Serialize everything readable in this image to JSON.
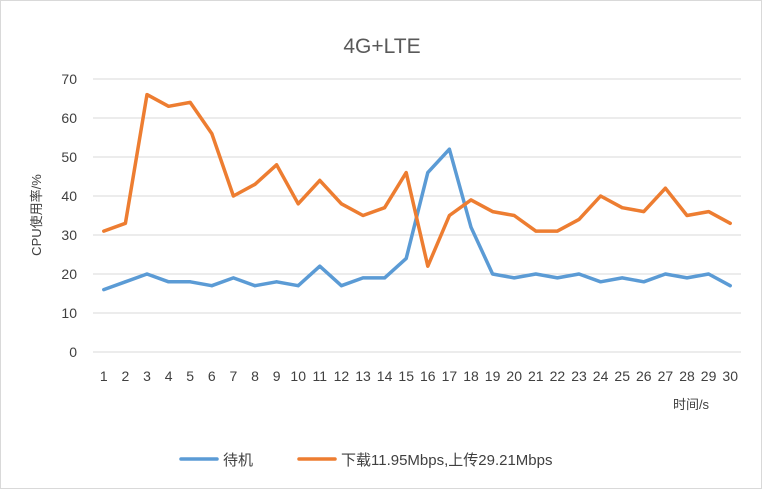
{
  "chart_data": {
    "type": "line",
    "title": "4G+LTE",
    "xlabel": "时间/s",
    "ylabel": "CPU使用率/%",
    "ylim": [
      0,
      70
    ],
    "yticks": [
      0,
      10,
      20,
      30,
      40,
      50,
      60,
      70
    ],
    "categories": [
      "1",
      "2",
      "3",
      "4",
      "5",
      "6",
      "7",
      "8",
      "9",
      "10",
      "11",
      "12",
      "13",
      "14",
      "15",
      "16",
      "17",
      "18",
      "19",
      "20",
      "21",
      "22",
      "23",
      "24",
      "25",
      "26",
      "27",
      "28",
      "29",
      "30"
    ],
    "grid": true,
    "legend_position": "bottom",
    "series": [
      {
        "name": "待机",
        "color": "#5b9bd5",
        "values": [
          16,
          18,
          20,
          18,
          18,
          17,
          19,
          17,
          18,
          17,
          22,
          17,
          19,
          19,
          24,
          46,
          52,
          32,
          20,
          19,
          20,
          19,
          20,
          18,
          19,
          18,
          20,
          19,
          20,
          17
        ]
      },
      {
        "name": "下载11.95Mbps,上传29.21Mbps",
        "color": "#ed7d31",
        "values": [
          31,
          33,
          66,
          63,
          64,
          56,
          40,
          43,
          48,
          38,
          44,
          38,
          35,
          37,
          46,
          22,
          35,
          39,
          36,
          35,
          31,
          31,
          34,
          40,
          37,
          36,
          42,
          35,
          36,
          33
        ]
      }
    ]
  }
}
